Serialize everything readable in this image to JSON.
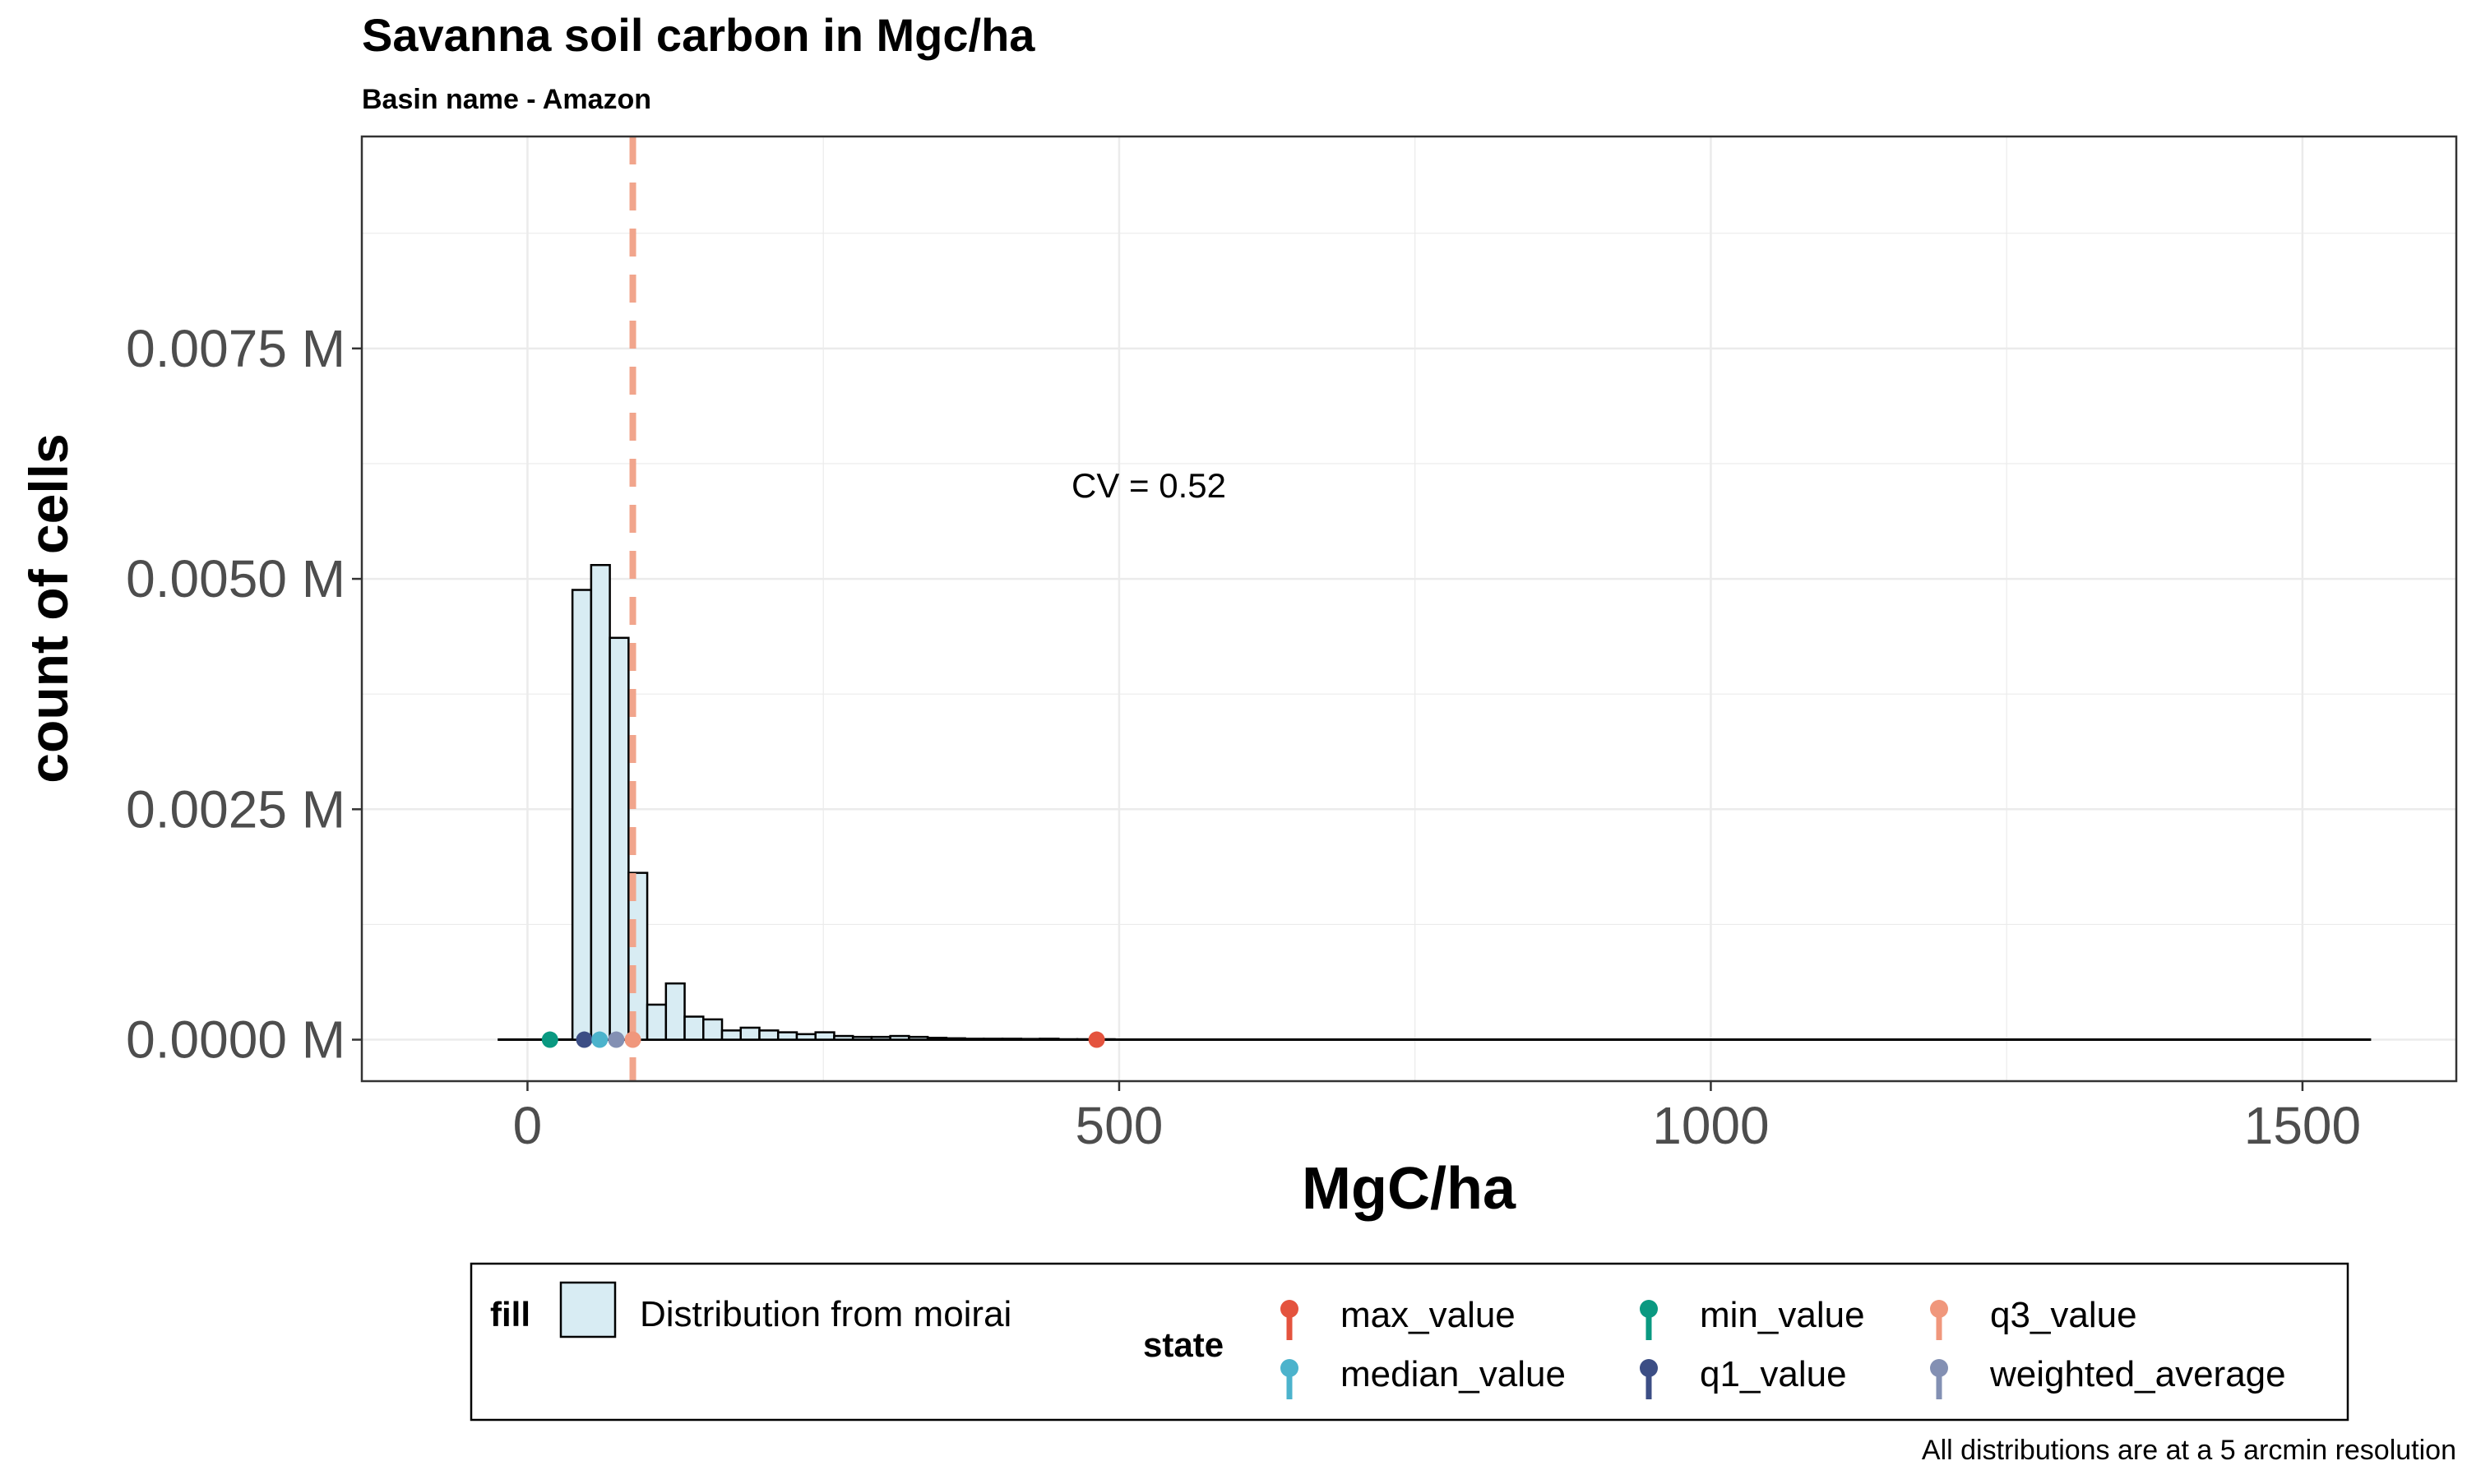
{
  "chart_data": {
    "type": "bar",
    "title": "Savanna soil carbon in Mgc/ha",
    "subtitle": "Basin name - Amazon",
    "xlabel": "MgC/ha",
    "ylabel": "count of cells",
    "caption": "All distributions are at a 5 arcmin resolution",
    "annotation": "CV = 0.52",
    "xlim": [
      -140,
      1630
    ],
    "ylim": [
      -0.00045,
      0.0098
    ],
    "x_ticks": [
      0,
      500,
      1000,
      1500
    ],
    "x_tick_labels": [
      "0",
      "500",
      "1000",
      "1500"
    ],
    "y_ticks": [
      0,
      0.0025,
      0.005,
      0.0075
    ],
    "y_tick_labels": [
      "0.0000 M",
      "0.0025 M",
      "0.0050 M",
      "0.0075 M"
    ],
    "grid": true,
    "bin_width": 15.8,
    "histogram": {
      "name": "Distribution from moirai",
      "fill": "#d8ecf3",
      "bins_start": [
        38,
        53.8,
        69.6,
        85.4,
        101.2,
        117,
        132.8,
        148.6,
        164.4,
        180.2,
        196,
        211.8,
        227.6,
        243.4,
        259.2,
        275,
        290.8,
        306.6,
        322.4,
        338.2,
        354,
        369.8,
        385.6,
        401.4,
        417.2,
        433,
        448.8,
        464.6,
        480.4
      ],
      "counts": [
        0.00488,
        0.00515,
        0.00436,
        0.00181,
        0.00038,
        0.00061,
        0.00025,
        0.00022,
        0.0001,
        0.00013,
        0.0001,
        8e-05,
        6e-05,
        8e-05,
        4e-05,
        3e-05,
        3e-05,
        4e-05,
        3e-05,
        2e-05,
        1.5e-05,
        1e-05,
        1e-05,
        1e-05,
        8e-06,
        1e-05,
        5e-06,
        5e-06,
        5e-06
      ],
      "line_xmax": 1558
    },
    "vline": {
      "x": 89,
      "color": "#f1a58c",
      "style": "dashed"
    },
    "points": [
      {
        "name": "min_value",
        "x": 19,
        "y": 0,
        "color": "#0a9981"
      },
      {
        "name": "q1_value",
        "x": 48,
        "y": 0,
        "color": "#3c4e85"
      },
      {
        "name": "median_value",
        "x": 61,
        "y": 0,
        "color": "#4cb3cc"
      },
      {
        "name": "weighted_average",
        "x": 75,
        "y": 0,
        "color": "#8390b3"
      },
      {
        "name": "q3_value",
        "x": 89,
        "y": 0,
        "color": "#f0977c"
      },
      {
        "name": "max_value",
        "x": 481,
        "y": 0,
        "color": "#e4533e"
      }
    ],
    "legend": {
      "placement": "bottom",
      "fill_title": "fill",
      "fill_label": "Distribution from moirai",
      "state_title": "state",
      "state_items": [
        {
          "label": "max_value",
          "color": "#e4533e"
        },
        {
          "label": "min_value",
          "color": "#0a9981"
        },
        {
          "label": "q3_value",
          "color": "#f0977c"
        },
        {
          "label": "median_value",
          "color": "#4cb3cc"
        },
        {
          "label": "q1_value",
          "color": "#3c4e85"
        },
        {
          "label": "weighted_average",
          "color": "#8390b3"
        }
      ]
    }
  }
}
